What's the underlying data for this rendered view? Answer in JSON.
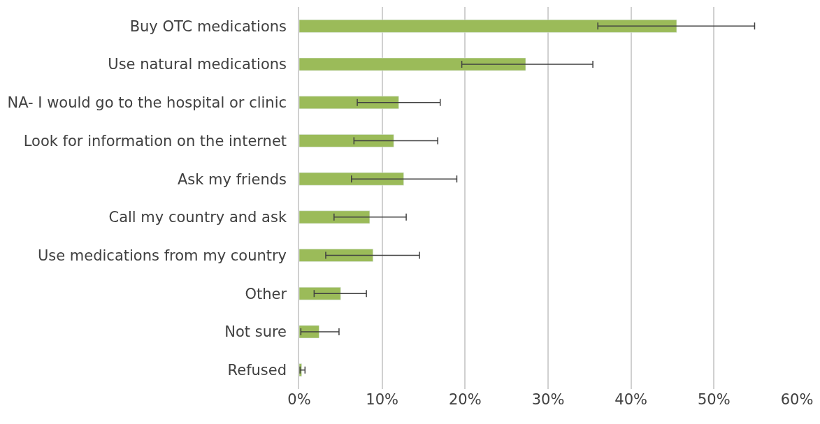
{
  "chart_data": {
    "type": "bar",
    "orientation": "horizontal",
    "categories": [
      "Buy OTC medications",
      "Use natural medications",
      "NA- I would go to the hospital or clinic",
      "Look for information on the internet",
      "Ask my friends",
      "Call my country and ask",
      "Use medications from my country",
      "Other",
      "Not sure",
      "Refused"
    ],
    "values": [
      45.5,
      27.3,
      12.0,
      11.4,
      12.6,
      8.5,
      8.9,
      5.0,
      2.4,
      0.3
    ],
    "errors": [
      [
        36.0,
        54.9
      ],
      [
        19.6,
        35.4
      ],
      [
        7.0,
        17.0
      ],
      [
        6.6,
        16.7
      ],
      [
        6.3,
        19.0
      ],
      [
        4.2,
        12.9
      ],
      [
        3.2,
        14.5
      ],
      [
        1.8,
        8.1
      ],
      [
        0.2,
        4.8
      ],
      [
        0.1,
        0.7
      ]
    ],
    "color": "#9bbb59",
    "xlim": [
      0,
      60
    ],
    "xticks": [
      {
        "value": 0,
        "label": "0%"
      },
      {
        "value": 10,
        "label": "10%"
      },
      {
        "value": 20,
        "label": "20%"
      },
      {
        "value": 30,
        "label": "30%"
      },
      {
        "value": 40,
        "label": "40%"
      },
      {
        "value": 50,
        "label": "50%"
      },
      {
        "value": 60,
        "label": "60%"
      }
    ],
    "grid": "x"
  }
}
